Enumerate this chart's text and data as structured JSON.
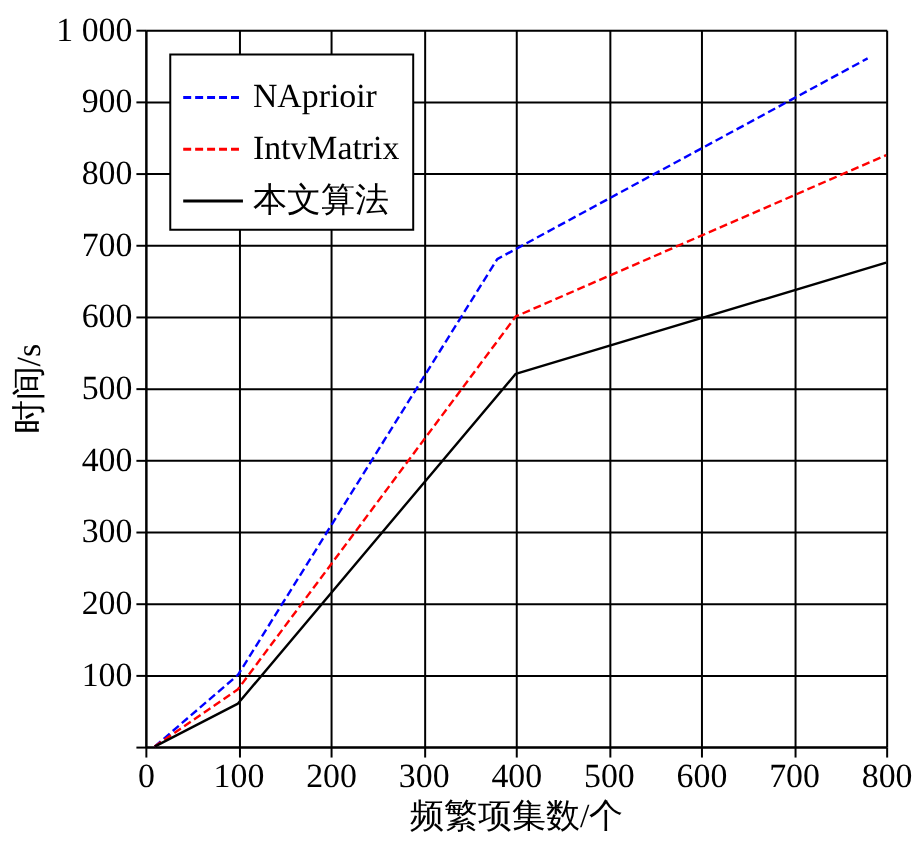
{
  "chart_data": {
    "type": "line",
    "xlabel": "频繁项集数/个",
    "ylabel": "时间/s",
    "series": [
      {
        "name": "NAprioir",
        "color": "#0000ff",
        "line_style": "dashed",
        "x": [
          10,
          100,
          380,
          780
        ],
        "values": [
          0,
          100,
          680,
          960
        ]
      },
      {
        "name": "IntvMatrix",
        "color": "#ff0000",
        "line_style": "dashed",
        "x": [
          10,
          100,
          400,
          800
        ],
        "values": [
          0,
          80,
          600,
          825
        ]
      },
      {
        "name": "本文算法",
        "color": "#000000",
        "line_style": "solid",
        "x": [
          10,
          100,
          400,
          800
        ],
        "values": [
          0,
          60,
          520,
          675
        ]
      }
    ],
    "xlim": [
      0,
      800
    ],
    "xticks": [
      0,
      100,
      200,
      300,
      400,
      500,
      600,
      700,
      800
    ],
    "ylim": [
      0,
      1000
    ],
    "yticks": [
      {
        "value": 0,
        "label": null
      },
      100,
      200,
      300,
      400,
      500,
      600,
      700,
      800,
      900,
      {
        "value": 1000,
        "label": "1 000"
      }
    ],
    "grid": true,
    "legend": "top left",
    "marker": "none"
  }
}
